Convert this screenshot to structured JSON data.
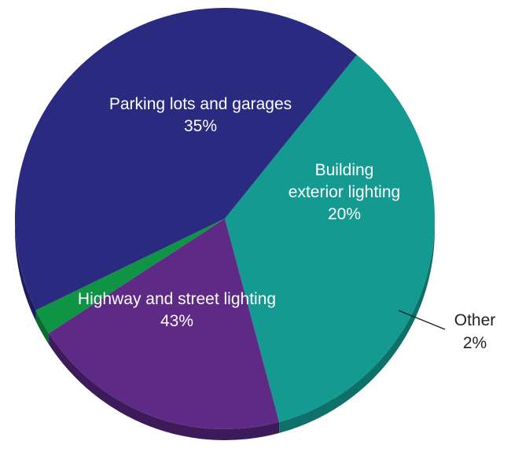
{
  "chart_data": {
    "type": "pie",
    "title": "",
    "slices": [
      {
        "name": "Parking lots and garages",
        "value": 35,
        "label": "35%",
        "color": "#149A90",
        "side_color": "#0E7169"
      },
      {
        "name": "Building exterior lighting",
        "value": 20,
        "label": "20%",
        "color": "#5F2A85",
        "side_color": "#3D1A5A"
      },
      {
        "name": "Other",
        "value": 2,
        "label": "2%",
        "color": "#0F9445",
        "side_color": "#0A6A31"
      },
      {
        "name": "Highway and street lighting",
        "value": 43,
        "label": "43%",
        "color": "#2A2A80",
        "side_color": "#1C1C5C"
      }
    ]
  }
}
